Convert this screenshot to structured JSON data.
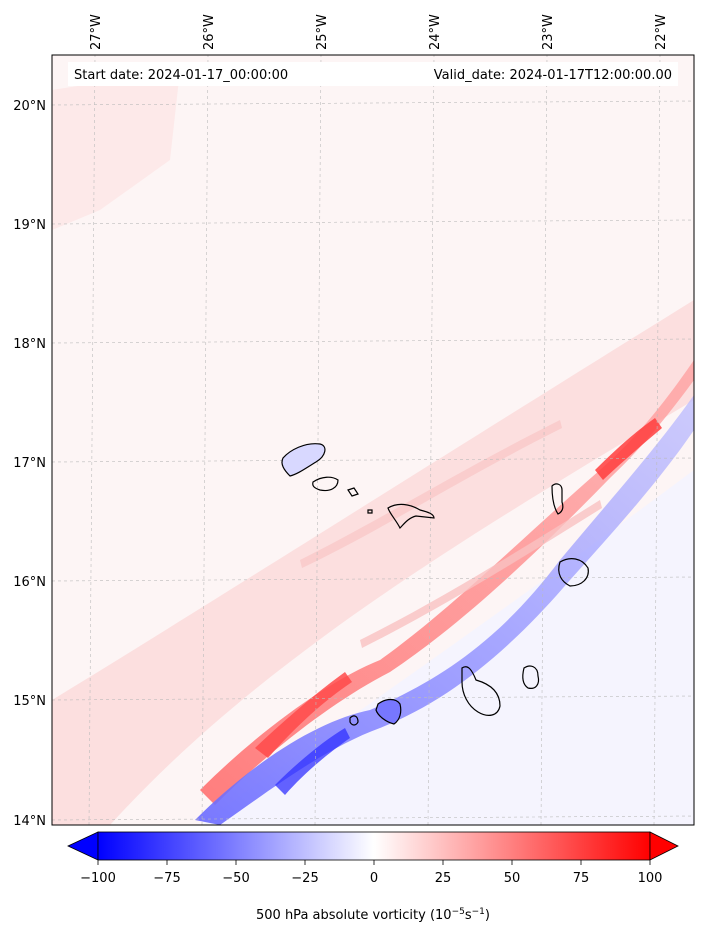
{
  "header": {
    "start_date": "Start date: 2024-01-17_00:00:00",
    "valid_date": "Valid_date: 2024-01-17T12:00:00.00"
  },
  "map": {
    "lon_ticks": [
      {
        "value": -27,
        "label": "27°W"
      },
      {
        "value": -26,
        "label": "26°W"
      },
      {
        "value": -25,
        "label": "25°W"
      },
      {
        "value": -24,
        "label": "24°W"
      },
      {
        "value": -23,
        "label": "23°W"
      },
      {
        "value": -22,
        "label": "22°W"
      }
    ],
    "lat_ticks": [
      {
        "value": 20,
        "label": "20°N"
      },
      {
        "value": 19,
        "label": "19°N"
      },
      {
        "value": 18,
        "label": "18°N"
      },
      {
        "value": 17,
        "label": "17°N"
      },
      {
        "value": 16,
        "label": "16°N"
      },
      {
        "value": 15,
        "label": "15°N"
      },
      {
        "value": 14,
        "label": "14°N"
      }
    ],
    "gridlines": true,
    "colormap": "bwr"
  },
  "colorbar": {
    "min": -100,
    "max": 100,
    "ticks": [
      {
        "value": -100,
        "label": "−100"
      },
      {
        "value": -75,
        "label": "−75"
      },
      {
        "value": -50,
        "label": "−50"
      },
      {
        "value": -25,
        "label": "−25"
      },
      {
        "value": 0,
        "label": "0"
      },
      {
        "value": 25,
        "label": "25"
      },
      {
        "value": 50,
        "label": "50"
      },
      {
        "value": 75,
        "label": "75"
      },
      {
        "value": 100,
        "label": "100"
      }
    ],
    "label_main": "500 hPa absolute vorticity (10",
    "label_exp1": "−5",
    "label_mid": "s",
    "label_exp2": "−1",
    "label_end": ")"
  },
  "colors": {
    "min": "#0000ff",
    "mid": "#ffffff",
    "max": "#ff0000",
    "background_field": "#fdf5f5"
  }
}
